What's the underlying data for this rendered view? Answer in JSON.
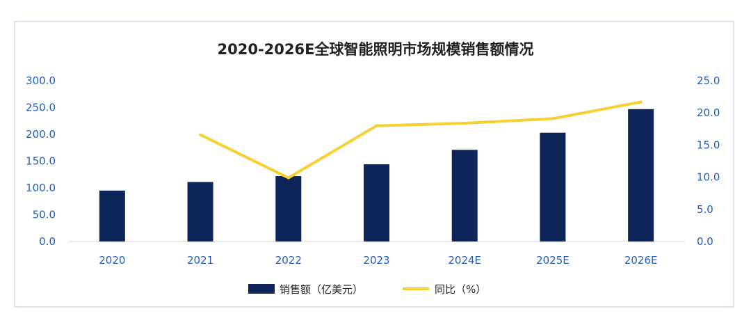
{
  "chart_data": {
    "type": "bar",
    "title": "2020-2026E全球智能照明市场规模销售额情况",
    "categories": [
      "2020",
      "2021",
      "2022",
      "2023",
      "2024E",
      "2025E",
      "2026E"
    ],
    "series": [
      {
        "name": "销售额（亿美元）",
        "type": "bar",
        "axis": "left",
        "color": "#0d2559",
        "values": [
          95,
          111,
          122,
          144,
          171,
          203,
          247
        ]
      },
      {
        "name": "同比（%）",
        "type": "line",
        "axis": "right",
        "color": "#f5d133",
        "values": [
          null,
          16.6,
          9.9,
          18.0,
          18.4,
          19.1,
          21.7
        ]
      }
    ],
    "y_left": {
      "min": 0,
      "max": 300,
      "step": 50,
      "ticks": [
        "0.0",
        "50.0",
        "100.0",
        "150.0",
        "200.0",
        "250.0",
        "300.0"
      ]
    },
    "y_right": {
      "min": 0,
      "max": 25,
      "step": 5,
      "ticks": [
        "0.0",
        "5.0",
        "10.0",
        "15.0",
        "20.0",
        "25.0"
      ]
    },
    "grid": false,
    "legend_position": "bottom-center"
  }
}
